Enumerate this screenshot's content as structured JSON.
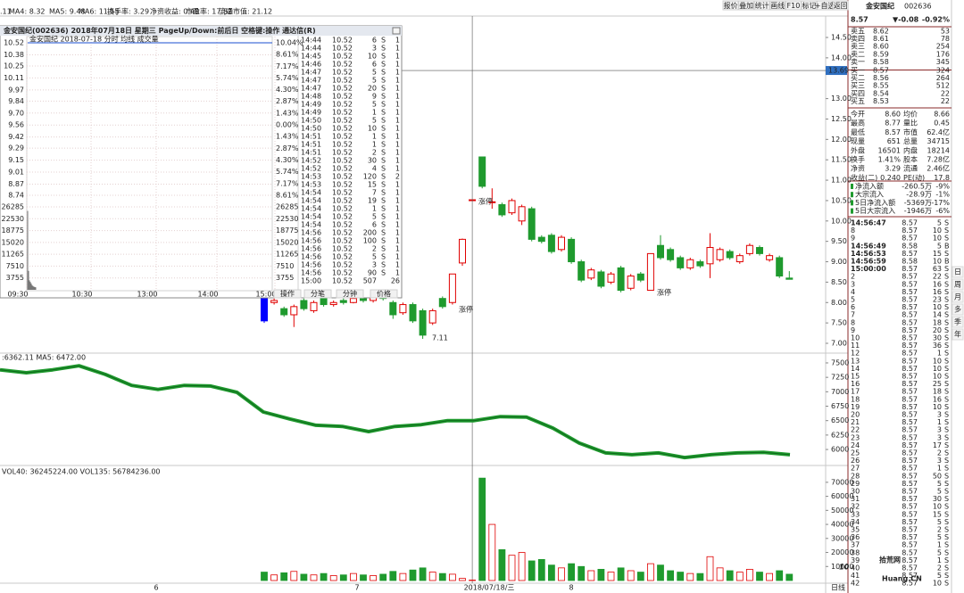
{
  "top_bar": {
    "items": [
      {
        "text": ".11",
        "color": "#000000"
      },
      {
        "text": "MA4: 8.32",
        "color": "#333333"
      },
      {
        "text": "MA5: 9.48",
        "color": "#c8a000"
      },
      {
        "text": "MA6: 11.55",
        "color": "#00a0c0"
      },
      {
        "text": "换手率: 3.29",
        "color": "#e000e0"
      },
      {
        "text": "净资收益: 0.48",
        "color": "#e000e0"
      },
      {
        "text": "市盈率: 17.82",
        "color": "#e000e0"
      },
      {
        "text": "流通市值: 21.12",
        "color": "#e000e0"
      }
    ],
    "buttons": [
      "报价",
      "叠加",
      "统计",
      "画线",
      "F10",
      "标记",
      "+自选",
      "返回"
    ]
  },
  "stock": {
    "name": "金安国纪",
    "code": "002636",
    "price": "8.57",
    "change": "▼-0.08",
    "pct": "-0.92%"
  },
  "order_book": [
    [
      "卖五",
      "8.62",
      "53"
    ],
    [
      "卖四",
      "8.61",
      "78"
    ],
    [
      "卖三",
      "8.60",
      "254"
    ],
    [
      "卖二",
      "8.59",
      "176"
    ],
    [
      "卖一",
      "8.58",
      "345"
    ],
    [
      "买一",
      "8.57",
      "324"
    ],
    [
      "买二",
      "8.56",
      "264"
    ],
    [
      "买三",
      "8.55",
      "512"
    ],
    [
      "买四",
      "8.54",
      "22"
    ],
    [
      "买五",
      "8.53",
      "22"
    ]
  ],
  "stats": [
    [
      "今开",
      "8.60",
      "均价",
      "8.66"
    ],
    [
      "最高",
      "8.77",
      "量比",
      "0.45"
    ],
    [
      "最低",
      "8.57",
      "市值",
      "62.4亿"
    ],
    [
      "现量",
      "651",
      "总量",
      "34715"
    ],
    [
      "外盘",
      "16501",
      "内盘",
      "18214"
    ],
    [
      "换手",
      "1.41%",
      "股本",
      "7.28亿"
    ],
    [
      "净资",
      "3.29",
      "流通",
      "2.46亿"
    ],
    [
      "收益(二)",
      "0.240",
      "PE(动)",
      "17.8"
    ]
  ],
  "fund_flow": [
    [
      "净流入额",
      "-260.5万",
      "-9%"
    ],
    [
      "大宗流入",
      "-28.9万",
      "-1%"
    ],
    [
      "5日净流入额",
      "-5369万",
      "-17%"
    ],
    [
      "5日大宗流入",
      "-1946万",
      "-6%"
    ]
  ],
  "ticks": [
    [
      "14:56:47",
      "8.57",
      "5",
      "S"
    ],
    [
      "8",
      "8.57",
      "10",
      "S"
    ],
    [
      "9",
      "8.57",
      "10",
      "S"
    ],
    [
      "14:56:49",
      "8.58",
      "5",
      "B"
    ],
    [
      "14:56:53",
      "8.57",
      "15",
      "S"
    ],
    [
      "14:56:59",
      "8.58",
      "10",
      "B"
    ],
    [
      "15:00:00",
      "8.57",
      "63",
      "S"
    ],
    [
      "2",
      "8.57",
      "22",
      "S"
    ],
    [
      "3",
      "8.57",
      "16",
      "S"
    ],
    [
      "4",
      "8.57",
      "16",
      "S"
    ],
    [
      "5",
      "8.57",
      "23",
      "S"
    ],
    [
      "6",
      "8.57",
      "10",
      "S"
    ],
    [
      "7",
      "8.57",
      "14",
      "S"
    ],
    [
      "8",
      "8.57",
      "18",
      "S"
    ],
    [
      "9",
      "8.57",
      "20",
      "S"
    ],
    [
      "10",
      "8.57",
      "30",
      "S"
    ],
    [
      "11",
      "8.57",
      "36",
      "S"
    ],
    [
      "12",
      "8.57",
      "1",
      "S"
    ],
    [
      "13",
      "8.57",
      "10",
      "S"
    ],
    [
      "14",
      "8.57",
      "10",
      "S"
    ],
    [
      "15",
      "8.57",
      "10",
      "S"
    ],
    [
      "16",
      "8.57",
      "25",
      "S"
    ],
    [
      "17",
      "8.57",
      "18",
      "S"
    ],
    [
      "18",
      "8.57",
      "16",
      "S"
    ],
    [
      "19",
      "8.57",
      "10",
      "S"
    ],
    [
      "20",
      "8.57",
      "3",
      "S"
    ],
    [
      "21",
      "8.57",
      "1",
      "S"
    ],
    [
      "22",
      "8.57",
      "3",
      "S"
    ],
    [
      "23",
      "8.57",
      "3",
      "S"
    ],
    [
      "24",
      "8.57",
      "17",
      "S"
    ],
    [
      "25",
      "8.57",
      "2",
      "S"
    ],
    [
      "26",
      "8.57",
      "3",
      "S"
    ],
    [
      "27",
      "8.57",
      "1",
      "S"
    ],
    [
      "28",
      "8.57",
      "50",
      "S"
    ],
    [
      "29",
      "8.57",
      "5",
      "S"
    ],
    [
      "30",
      "8.57",
      "5",
      "S"
    ],
    [
      "31",
      "8.57",
      "30",
      "S"
    ],
    [
      "32",
      "8.57",
      "10",
      "S"
    ],
    [
      "33",
      "8.57",
      "15",
      "S"
    ],
    [
      "34",
      "8.57",
      "5",
      "S"
    ],
    [
      "35",
      "8.57",
      "2",
      "S"
    ],
    [
      "36",
      "8.57",
      "5",
      "S"
    ],
    [
      "37",
      "8.57",
      "1",
      "S"
    ],
    [
      "38",
      "8.57",
      "5",
      "S"
    ],
    [
      "39",
      "8.57",
      "1",
      "S"
    ],
    [
      "40",
      "8.57",
      "2",
      "S"
    ],
    [
      "41",
      "8.57",
      "5",
      "S"
    ],
    [
      "42",
      "8.57",
      "10",
      "S"
    ]
  ],
  "right_strip": [
    "日",
    "周",
    "月",
    "多",
    "季",
    "年"
  ],
  "popup": {
    "title": "金安国纪(002636)  2018年07月18日 星期三  PageUp/Down:前后日  空格键:操作  通达信(R)",
    "subtitle": "金安国纪  2018-07-18 分时  均线  成交量",
    "trades": [
      [
        "14:44",
        "10.52",
        "6",
        "S",
        "1"
      ],
      [
        "14:44",
        "10.52",
        "3",
        "S",
        "1"
      ],
      [
        "14:45",
        "10.52",
        "10",
        "S",
        "1"
      ],
      [
        "14:46",
        "10.52",
        "6",
        "S",
        "1"
      ],
      [
        "14:47",
        "10.52",
        "5",
        "S",
        "1"
      ],
      [
        "14:47",
        "10.52",
        "5",
        "S",
        "1"
      ],
      [
        "14:47",
        "10.52",
        "20",
        "S",
        "1"
      ],
      [
        "14:48",
        "10.52",
        "9",
        "S",
        "1"
      ],
      [
        "14:49",
        "10.52",
        "5",
        "S",
        "1"
      ],
      [
        "14:49",
        "10.52",
        "1",
        "S",
        "1"
      ],
      [
        "14:50",
        "10.52",
        "5",
        "S",
        "1"
      ],
      [
        "14:50",
        "10.52",
        "10",
        "S",
        "1"
      ],
      [
        "14:51",
        "10.52",
        "1",
        "S",
        "1"
      ],
      [
        "14:51",
        "10.52",
        "1",
        "S",
        "1"
      ],
      [
        "14:51",
        "10.52",
        "2",
        "S",
        "1"
      ],
      [
        "14:52",
        "10.52",
        "30",
        "S",
        "1"
      ],
      [
        "14:52",
        "10.52",
        "4",
        "S",
        "1"
      ],
      [
        "14:53",
        "10.52",
        "120",
        "S",
        "2"
      ],
      [
        "14:53",
        "10.52",
        "15",
        "S",
        "1"
      ],
      [
        "14:54",
        "10.52",
        "7",
        "S",
        "1"
      ],
      [
        "14:54",
        "10.52",
        "19",
        "S",
        "1"
      ],
      [
        "14:54",
        "10.52",
        "1",
        "S",
        "1"
      ],
      [
        "14:54",
        "10.52",
        "5",
        "S",
        "1"
      ],
      [
        "14:54",
        "10.52",
        "6",
        "S",
        "1"
      ],
      [
        "14:56",
        "10.52",
        "200",
        "S",
        "1"
      ],
      [
        "14:56",
        "10.52",
        "100",
        "S",
        "1"
      ],
      [
        "14:56",
        "10.52",
        "2",
        "S",
        "1"
      ],
      [
        "14:56",
        "10.52",
        "5",
        "S",
        "1"
      ],
      [
        "14:56",
        "10.52",
        "3",
        "S",
        "1"
      ],
      [
        "14:56",
        "10.52",
        "90",
        "S",
        "1"
      ],
      [
        "15:00",
        "10.52",
        "507",
        "26"
      ]
    ],
    "tabs": [
      "操作",
      "分笔",
      "分钟",
      "价格"
    ]
  },
  "chart_data": [
    {
      "type": "candlestick",
      "open": [
        8.15,
        8.0,
        7.85,
        7.7,
        8.05,
        7.8,
        8.1,
        7.95,
        8.05,
        8.0,
        8.15,
        8.05,
        8.2,
        8.0,
        7.75,
        7.95,
        7.8,
        7.5,
        8.1,
        8.0,
        8.97,
        10.52,
        11.57,
        10.45,
        10.4,
        10.2,
        10.0,
        10.3,
        9.6,
        9.65,
        9.3,
        9.55,
        9.0,
        8.6,
        8.75,
        8.5,
        8.85,
        8.35,
        8.7,
        8.3,
        9.4,
        9.3,
        9.1,
        8.85,
        9.0,
        8.95,
        9.05,
        9.25,
        9.0,
        9.2,
        9.35,
        9.05,
        9.1,
        8.6
      ],
      "high": [
        8.2,
        8.1,
        7.9,
        7.95,
        8.1,
        8.05,
        8.15,
        8.05,
        8.1,
        8.15,
        8.2,
        8.2,
        8.25,
        8.05,
        8.0,
        8.0,
        7.85,
        7.85,
        8.15,
        8.7,
        9.57,
        10.52,
        11.57,
        10.8,
        10.45,
        10.55,
        10.4,
        10.35,
        9.65,
        9.7,
        9.65,
        9.6,
        9.05,
        8.85,
        8.8,
        8.75,
        8.9,
        8.7,
        8.75,
        9.2,
        9.65,
        9.35,
        9.15,
        9.1,
        9.05,
        9.7,
        9.35,
        9.3,
        9.2,
        9.45,
        9.4,
        9.2,
        9.15,
        8.77
      ],
      "low": [
        7.5,
        7.95,
        7.65,
        7.4,
        7.8,
        7.75,
        7.9,
        7.9,
        7.95,
        7.98,
        8.0,
        8.0,
        8.05,
        7.6,
        7.7,
        7.5,
        7.11,
        7.45,
        7.85,
        7.95,
        8.9,
        10.52,
        10.8,
        10.3,
        10.1,
        10.15,
        9.9,
        9.5,
        9.45,
        9.2,
        9.25,
        8.95,
        8.5,
        8.55,
        8.35,
        8.45,
        8.25,
        8.3,
        8.5,
        8.3,
        9.05,
        9.0,
        8.8,
        8.8,
        8.85,
        8.6,
        9.0,
        9.05,
        8.95,
        9.15,
        9.15,
        9.0,
        8.6,
        8.57
      ],
      "close": [
        7.55,
        8.05,
        7.7,
        7.9,
        7.85,
        8.0,
        7.95,
        8.0,
        8.0,
        8.1,
        8.05,
        8.15,
        8.1,
        7.7,
        7.95,
        7.55,
        7.2,
        7.8,
        7.9,
        8.7,
        9.55,
        10.52,
        10.85,
        10.47,
        10.15,
        10.5,
        10.35,
        9.55,
        9.5,
        9.25,
        9.6,
        9.0,
        8.55,
        8.8,
        8.4,
        8.7,
        8.3,
        8.65,
        8.55,
        9.2,
        9.1,
        9.05,
        8.85,
        9.05,
        8.9,
        9.35,
        9.3,
        9.1,
        9.15,
        9.4,
        9.2,
        9.15,
        8.65,
        8.57
      ],
      "up_color": "#e00000",
      "down_color": "#1f9a2e",
      "highlight_index": 0,
      "highlight_color": "#0000ff",
      "ylim": [
        7.0,
        14.5
      ],
      "yticks": [
        {
          "value": 7.0,
          "label": "7.00"
        },
        {
          "value": 7.5,
          "label": "7.50"
        },
        {
          "value": 8.0,
          "label": "8.00"
        },
        {
          "value": 8.5,
          "label": "8.50"
        },
        {
          "value": 9.0,
          "label": "9.00"
        },
        {
          "value": 9.5,
          "label": "9.50"
        },
        {
          "value": 10.0,
          "label": "10.00"
        },
        {
          "value": 10.5,
          "label": "10.50"
        },
        {
          "value": 11.0,
          "label": "11.00"
        },
        {
          "value": 11.5,
          "label": "11.50"
        },
        {
          "value": 12.0,
          "label": "12.00"
        },
        {
          "value": 12.5,
          "label": "12.50"
        },
        {
          "value": 13.0,
          "label": "13.00"
        },
        {
          "value": 14.0,
          "label": "14.00"
        },
        {
          "value": 14.5,
          "label": "14.50"
        }
      ],
      "crosshair": {
        "value": 13.69,
        "label": "13.69"
      },
      "annotations": [
        "7.11",
        "涨停",
        "涨停",
        "涨停"
      ],
      "x_labels": [
        "6",
        "7",
        "2018/07/18/三",
        "8"
      ],
      "period": "日线"
    },
    {
      "type": "line",
      "label": ":6362.11  MA5: 6472.00",
      "color": "#1f9a2e",
      "values": [
        7380,
        7330,
        7380,
        7450,
        7300,
        7110,
        7040,
        7110,
        7100,
        6990,
        6650,
        6530,
        6420,
        6400,
        6310,
        6400,
        6430,
        6500,
        6500,
        6570,
        6560,
        6370,
        6110,
        5940,
        5910,
        5940,
        5860,
        5910,
        5940,
        5950,
        5910
      ],
      "ylim": [
        5800,
        7600
      ],
      "yticks": [
        6000,
        6250,
        6500,
        6750,
        7000,
        7250,
        7500
      ]
    },
    {
      "type": "bar",
      "label": "VOL40: 36245224.00  VOL135: 56784236.00",
      "values": [
        6000,
        4000,
        5500,
        6500,
        4500,
        4000,
        5000,
        3500,
        4000,
        5000,
        4000,
        3500,
        4500,
        6500,
        5000,
        7500,
        9000,
        6000,
        5000,
        4500,
        1500,
        300,
        73000,
        40000,
        22000,
        18000,
        20000,
        14000,
        15000,
        11000,
        9000,
        12000,
        10000,
        7000,
        8000,
        6000,
        9000,
        7000,
        6000,
        12000,
        11000,
        7000,
        6000,
        5000,
        5000,
        17000,
        9000,
        7000,
        6000,
        8000,
        6000,
        5000,
        7000,
        4500
      ],
      "ylim": [
        0,
        75000
      ],
      "yticks": [
        10000,
        20000,
        30000,
        40000,
        50000,
        60000,
        70000
      ]
    },
    {
      "type": "intraday",
      "price": [
        10.52,
        10.52
      ],
      "volume": [
        25000,
        6000,
        3000,
        2500,
        2000,
        1500,
        1200,
        1000,
        900,
        800
      ],
      "ylim": [
        8.74,
        10.52
      ],
      "yticks": [
        8.74,
        8.87,
        9.01,
        9.15,
        9.29,
        9.42,
        9.56,
        {
          "value": 9.7,
          "label": "9.70"
        },
        9.84,
        9.97,
        10.11,
        10.25,
        10.38,
        10.52
      ],
      "y2lim": [
        -8.61,
        10.04
      ],
      "y2ticks": [
        {
          "value": -8.61,
          "label": "8.61%"
        },
        {
          "value": -7.17,
          "label": "7.17%"
        },
        {
          "value": -5.74,
          "label": "5.74%"
        },
        {
          "value": -4.3,
          "label": "4.30%"
        },
        {
          "value": -2.87,
          "label": "2.87%"
        },
        {
          "value": -1.43,
          "label": "1.43%"
        },
        {
          "value": 0,
          "label": "0.00%"
        },
        {
          "value": 1.43,
          "label": "1.43%"
        },
        {
          "value": 2.87,
          "label": "2.87%"
        },
        {
          "value": 4.3,
          "label": "4.30%"
        },
        {
          "value": 5.74,
          "label": "5.74%"
        },
        {
          "value": 7.17,
          "label": "7.17%"
        },
        {
          "value": 8.61,
          "label": "8.61%"
        },
        {
          "value": 10.04,
          "label": "10.04%"
        }
      ],
      "vlim": [
        0,
        26285
      ],
      "vticks": [
        3755,
        7510,
        11265,
        15020,
        18775,
        22530,
        26285
      ],
      "xticks": [
        "09:30",
        "10:30",
        "13:00",
        "14:00",
        "15:00"
      ]
    }
  ],
  "watermark": {
    "logo": "10",
    "name": "拾荒网",
    "site": "Huang.CN"
  }
}
